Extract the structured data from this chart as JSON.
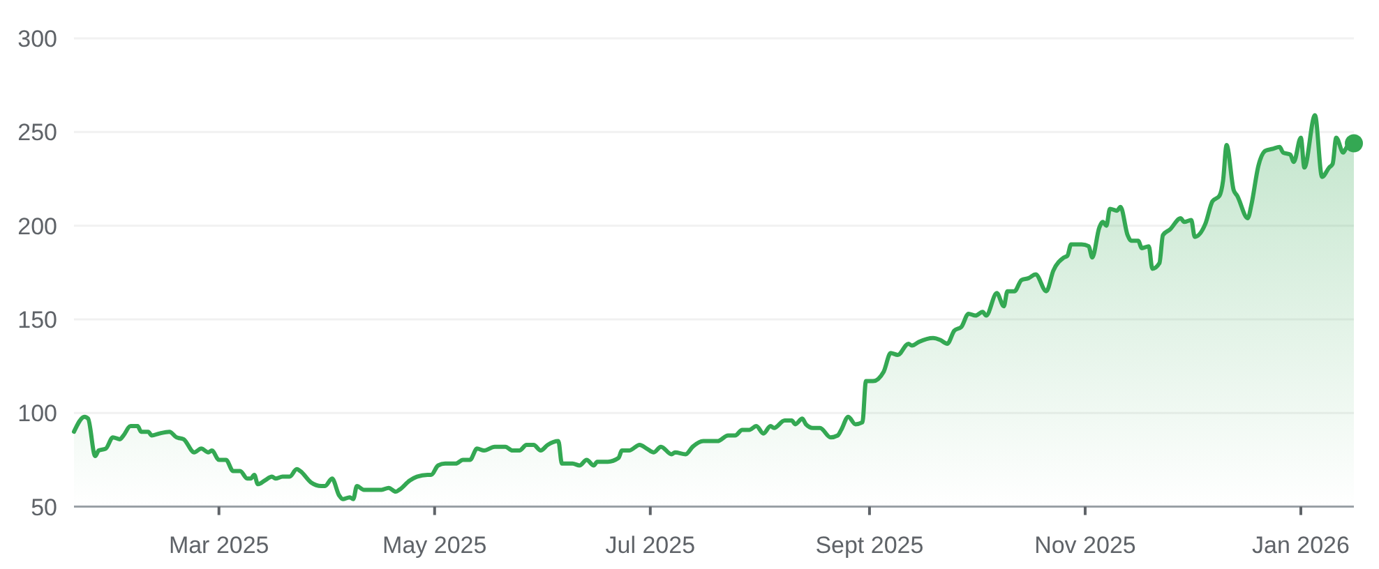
{
  "chart_data": {
    "type": "area",
    "xlim": [
      "2025-01-19",
      "2026-01-16"
    ],
    "xticks": [
      {
        "value": "2025-03-01",
        "label": "Mar 2025"
      },
      {
        "value": "2025-05-01",
        "label": "May 2025"
      },
      {
        "value": "2025-07-01",
        "label": "Jul 2025"
      },
      {
        "value": "2025-09-01",
        "label": "Sept 2025"
      },
      {
        "value": "2025-11-01",
        "label": "Nov 2025"
      },
      {
        "value": "2026-01-01",
        "label": "Jan 2026"
      }
    ],
    "ylim": [
      50,
      300
    ],
    "yticks": [
      50,
      100,
      150,
      200,
      250,
      300
    ],
    "grid": "y",
    "series": [
      {
        "color": "#34a853",
        "x": [
          "2025-01-19",
          "2025-01-22",
          "2025-01-23",
          "2025-01-25",
          "2025-01-26",
          "2025-01-28",
          "2025-01-30",
          "2025-02-01",
          "2025-02-02",
          "2025-02-04",
          "2025-02-06",
          "2025-02-07",
          "2025-02-09",
          "2025-02-10",
          "2025-02-12",
          "2025-02-15",
          "2025-02-17",
          "2025-02-19",
          "2025-02-22",
          "2025-02-24",
          "2025-02-26",
          "2025-02-27",
          "2025-03-01",
          "2025-03-03",
          "2025-03-05",
          "2025-03-07",
          "2025-03-09",
          "2025-03-10",
          "2025-03-11",
          "2025-03-12",
          "2025-03-14",
          "2025-03-16",
          "2025-03-17",
          "2025-03-19",
          "2025-03-21",
          "2025-03-23",
          "2025-03-24",
          "2025-03-27",
          "2025-03-30",
          "2025-03-31",
          "2025-04-02",
          "2025-04-04",
          "2025-04-05",
          "2025-04-07",
          "2025-04-08",
          "2025-04-09",
          "2025-04-11",
          "2025-04-13",
          "2025-04-16",
          "2025-04-18",
          "2025-04-20",
          "2025-04-21",
          "2025-04-24",
          "2025-04-26",
          "2025-04-29",
          "2025-04-30",
          "2025-05-02",
          "2025-05-04",
          "2025-05-07",
          "2025-05-09",
          "2025-05-11",
          "2025-05-13",
          "2025-05-15",
          "2025-05-18",
          "2025-05-21",
          "2025-05-23",
          "2025-05-25",
          "2025-05-27",
          "2025-05-29",
          "2025-05-31",
          "2025-06-02",
          "2025-06-05",
          "2025-06-06",
          "2025-06-09",
          "2025-06-11",
          "2025-06-13",
          "2025-06-15",
          "2025-06-16",
          "2025-06-19",
          "2025-06-22",
          "2025-06-23",
          "2025-06-25",
          "2025-06-28",
          "2025-06-30",
          "2025-07-02",
          "2025-07-04",
          "2025-07-07",
          "2025-07-08",
          "2025-07-11",
          "2025-07-13",
          "2025-07-16",
          "2025-07-20",
          "2025-07-23",
          "2025-07-25",
          "2025-07-27",
          "2025-07-29",
          "2025-07-31",
          "2025-08-02",
          "2025-08-04",
          "2025-08-05",
          "2025-08-08",
          "2025-08-10",
          "2025-08-11",
          "2025-08-13",
          "2025-08-14",
          "2025-08-16",
          "2025-08-18",
          "2025-08-21",
          "2025-08-23",
          "2025-08-24",
          "2025-08-26",
          "2025-08-28",
          "2025-08-30",
          "2025-08-31",
          "2025-09-02",
          "2025-09-05",
          "2025-09-07",
          "2025-09-09",
          "2025-09-12",
          "2025-09-13",
          "2025-09-15",
          "2025-09-19",
          "2025-09-21",
          "2025-09-23",
          "2025-09-25",
          "2025-09-27",
          "2025-09-29",
          "2025-10-01",
          "2025-10-03",
          "2025-10-04",
          "2025-10-07",
          "2025-10-09",
          "2025-10-10",
          "2025-10-12",
          "2025-10-14",
          "2025-10-16",
          "2025-10-18",
          "2025-10-21",
          "2025-10-23",
          "2025-10-26",
          "2025-10-27",
          "2025-10-28",
          "2025-10-31",
          "2025-11-02",
          "2025-11-03",
          "2025-11-05",
          "2025-11-06",
          "2025-11-07",
          "2025-11-08",
          "2025-11-10",
          "2025-11-11",
          "2025-11-13",
          "2025-11-14",
          "2025-11-16",
          "2025-11-17",
          "2025-11-19",
          "2025-11-20",
          "2025-11-22",
          "2025-11-23",
          "2025-11-25",
          "2025-11-28",
          "2025-11-29",
          "2025-12-01",
          "2025-12-02",
          "2025-12-05",
          "2025-12-07",
          "2025-12-09",
          "2025-12-10",
          "2025-12-11",
          "2025-12-13",
          "2025-12-14",
          "2025-12-17",
          "2025-12-18",
          "2025-12-20",
          "2025-12-22",
          "2025-12-24",
          "2025-12-26",
          "2025-12-27",
          "2025-12-29",
          "2025-12-30",
          "2026-01-01",
          "2026-01-02",
          "2026-01-05",
          "2026-01-07",
          "2026-01-09",
          "2026-01-10",
          "2026-01-11",
          "2026-01-13",
          "2026-01-14",
          "2026-01-16"
        ],
        "values": [
          90,
          98,
          97,
          77,
          80,
          81,
          87,
          86,
          88,
          93,
          93,
          90,
          90,
          88,
          89,
          90,
          87,
          86,
          79,
          81,
          79,
          80,
          75,
          75,
          69,
          69,
          65,
          65,
          67,
          62,
          64,
          66,
          65,
          66,
          66,
          70,
          69,
          63,
          61,
          61,
          65,
          56,
          54,
          55,
          54,
          61,
          59,
          59,
          59,
          60,
          58,
          59,
          64,
          66,
          67,
          67,
          72,
          73,
          73,
          75,
          75,
          81,
          80,
          82,
          82,
          80,
          80,
          83,
          83,
          80,
          83,
          85,
          73,
          73,
          72,
          75,
          72,
          74,
          74,
          76,
          80,
          80,
          83,
          81,
          79,
          82,
          78,
          79,
          78,
          82,
          85,
          85,
          88,
          88,
          91,
          91,
          93,
          89,
          93,
          92,
          96,
          96,
          94,
          97,
          94,
          92,
          92,
          87,
          88,
          91,
          98,
          94,
          95,
          117,
          117,
          122,
          132,
          131,
          137,
          136,
          138,
          140,
          139,
          137,
          144,
          146,
          153,
          152,
          154,
          152,
          164,
          157,
          165,
          165,
          171,
          172,
          174,
          165,
          176,
          183,
          184,
          190,
          190,
          189,
          183,
          199,
          202,
          200,
          209,
          208,
          210,
          195,
          192,
          192,
          188,
          189,
          177,
          180,
          195,
          198,
          204,
          202,
          203,
          194,
          201,
          213,
          216,
          224,
          243,
          219,
          216,
          204,
          211,
          232,
          240,
          241,
          242,
          239,
          238,
          234,
          247,
          231,
          259,
          226,
          231,
          233,
          247,
          239,
          242,
          244
        ]
      },
      {
        "type": "scatter",
        "color": "#34a853",
        "marker": "circle",
        "x": [
          "2026-01-16"
        ],
        "values": [
          244
        ]
      }
    ]
  }
}
